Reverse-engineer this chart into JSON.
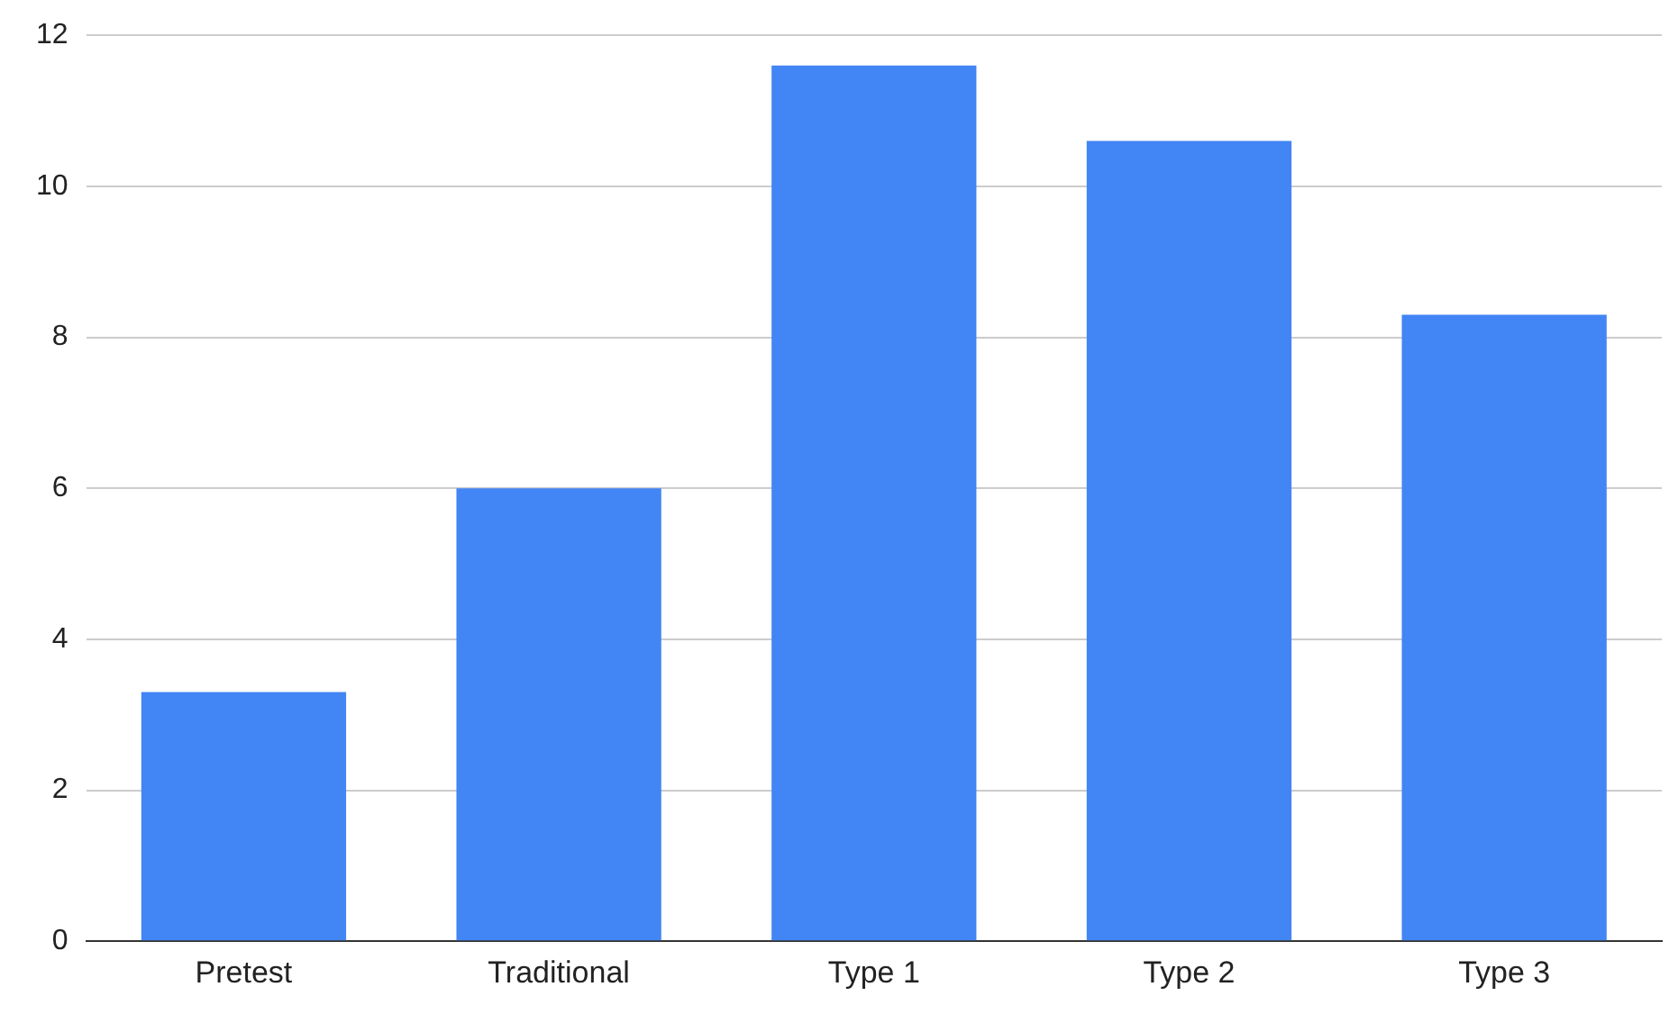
{
  "chart_data": {
    "type": "bar",
    "categories": [
      "Pretest",
      "Traditional",
      "Type 1",
      "Type 2",
      "Type 3"
    ],
    "values": [
      3.3,
      6,
      11.6,
      10.6,
      8.3
    ],
    "color": "#4285f4",
    "ylim": [
      0,
      12
    ],
    "yticks": [
      0,
      2,
      4,
      6,
      8,
      10,
      12
    ],
    "grid": "y",
    "legend": false
  }
}
